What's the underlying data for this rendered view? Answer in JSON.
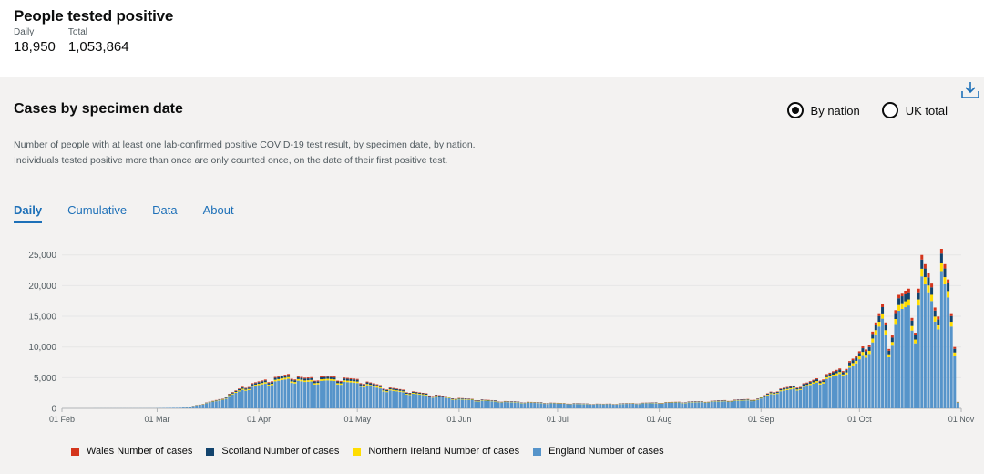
{
  "summary": {
    "title": "People tested positive",
    "daily_label": "Daily",
    "daily_value": "18,950",
    "total_label": "Total",
    "total_value": "1,053,864"
  },
  "card": {
    "title": "Cases by specimen date",
    "description": "Number of people with at least one lab-confirmed positive COVID-19 test result, by specimen date, by nation. Individuals tested positive more than once are only counted once, on the date of their first positive test.",
    "download_icon": "download-icon",
    "radio_by_nation": "By nation",
    "radio_uk_total": "UK total",
    "radio_selected": "By nation"
  },
  "tabs": [
    {
      "label": "Daily",
      "active": true
    },
    {
      "label": "Cumulative",
      "active": false
    },
    {
      "label": "Data",
      "active": false
    },
    {
      "label": "About",
      "active": false
    }
  ],
  "chart_data": {
    "type": "bar",
    "stacked": true,
    "title": "",
    "xlabel": "",
    "ylabel": "",
    "ylim": [
      0,
      26000
    ],
    "y_ticks": [
      "0",
      "5,000",
      "10,000",
      "15,000",
      "20,000",
      "25,000"
    ],
    "y_tick_values": [
      0,
      5000,
      10000,
      15000,
      20000,
      25000
    ],
    "x_ticks": [
      "01 Feb",
      "01 Mar",
      "01 Apr",
      "01 May",
      "01 Jun",
      "01 Jul",
      "01 Aug",
      "01 Sep",
      "01 Oct",
      "01 Nov"
    ],
    "x_tick_dates": [
      "2020-02-01",
      "2020-03-01",
      "2020-04-01",
      "2020-05-01",
      "2020-06-01",
      "2020-07-01",
      "2020-08-01",
      "2020-09-01",
      "2020-10-01",
      "2020-11-01"
    ],
    "grid": true,
    "legend_position": "bottom-left",
    "series_colors": {
      "Wales Number of cases": "#d4351c",
      "Scotland Number of cases": "#12436d",
      "Northern Ireland Number of cases": "#ffdd00",
      "England Number of cases": "#5694ca"
    },
    "legend": [
      "Wales Number of cases",
      "Scotland Number of cases",
      "Northern Ireland Number of cases",
      "England Number of cases"
    ],
    "points": [
      {
        "date": "2020-01-31",
        "total": 2
      },
      {
        "date": "2020-02-29",
        "total": 20
      },
      {
        "date": "2020-03-10",
        "total": 150
      },
      {
        "date": "2020-03-20",
        "total": 1500
      },
      {
        "date": "2020-03-28",
        "total": 3800
      },
      {
        "date": "2020-04-05",
        "total": 5000
      },
      {
        "date": "2020-04-10",
        "total": 5600
      },
      {
        "date": "2020-04-15",
        "total": 5000
      },
      {
        "date": "2020-04-22",
        "total": 5300
      },
      {
        "date": "2020-05-01",
        "total": 4800
      },
      {
        "date": "2020-05-10",
        "total": 3500
      },
      {
        "date": "2020-05-20",
        "total": 2600
      },
      {
        "date": "2020-06-01",
        "total": 1700
      },
      {
        "date": "2020-06-15",
        "total": 1200
      },
      {
        "date": "2020-07-01",
        "total": 900
      },
      {
        "date": "2020-07-15",
        "total": 750
      },
      {
        "date": "2020-08-01",
        "total": 1000
      },
      {
        "date": "2020-08-15",
        "total": 1200
      },
      {
        "date": "2020-08-31",
        "total": 1600
      },
      {
        "date": "2020-09-05",
        "total": 3000
      },
      {
        "date": "2020-09-15",
        "total": 4200
      },
      {
        "date": "2020-09-25",
        "total": 6500
      },
      {
        "date": "2020-09-30",
        "total": 8500
      },
      {
        "date": "2020-10-05",
        "total": 12500
      },
      {
        "date": "2020-10-08",
        "total": 17000
      },
      {
        "date": "2020-10-10",
        "total": 11000
      },
      {
        "date": "2020-10-13",
        "total": 18500
      },
      {
        "date": "2020-10-16",
        "total": 19500
      },
      {
        "date": "2020-10-18",
        "total": 14000
      },
      {
        "date": "2020-10-20",
        "total": 25000
      },
      {
        "date": "2020-10-22",
        "total": 22000
      },
      {
        "date": "2020-10-25",
        "total": 17000
      },
      {
        "date": "2020-10-26",
        "total": 26000
      },
      {
        "date": "2020-10-28",
        "total": 21000
      },
      {
        "date": "2020-10-30",
        "total": 10000
      },
      {
        "date": "2020-10-31",
        "total": 1200
      }
    ]
  }
}
